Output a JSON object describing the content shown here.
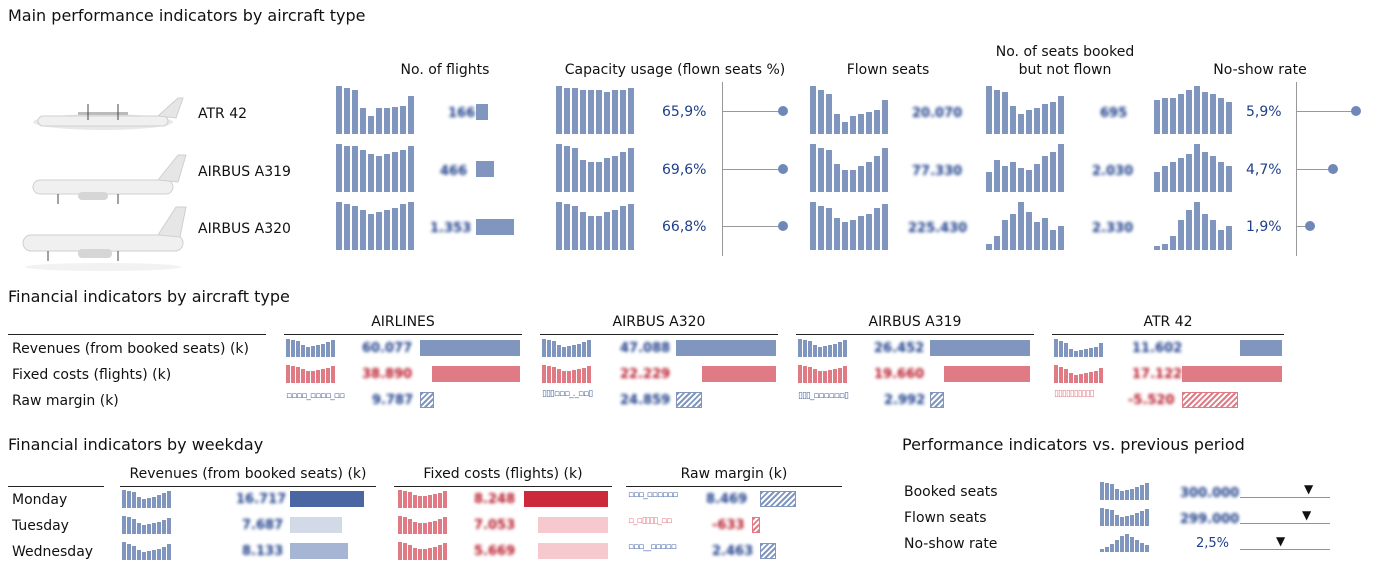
{
  "sections": {
    "main_title": "Main performance indicators by aircraft type",
    "financial_type_title": "Financial indicators by aircraft type",
    "financial_weekday_title": "Financial indicators by weekday",
    "perf_prev_title": "Performance indicators vs. previous period"
  },
  "main": {
    "col_flights": "No. of flights",
    "col_capacity": "Capacity usage (flown seats %)",
    "col_flown": "Flown seats",
    "col_booked_line1": "No. of seats booked",
    "col_booked_line2": "but not flown",
    "col_noshow": "No-show rate",
    "rows": [
      {
        "aircraft": "ATR 42",
        "capacity_value": "65,9%",
        "noshow_value": "5,9%"
      },
      {
        "aircraft": "AIRBUS A319",
        "capacity_value": "69,6%",
        "noshow_value": "4,7%"
      },
      {
        "aircraft": "AIRBUS A320",
        "capacity_value": "66,8%",
        "noshow_value": "1,9%"
      }
    ]
  },
  "fin_type": {
    "row_labels": [
      "Revenues (from booked seats) (k)",
      "Fixed costs (flights) (k)",
      "Raw margin (k)"
    ],
    "groups": [
      "AIRLINES",
      "AIRBUS A320",
      "AIRBUS A319",
      "ATR 42"
    ]
  },
  "fin_weekday": {
    "col_revenues": "Revenues (from booked seats) (k)",
    "col_fixed": "Fixed costs (flights) (k)",
    "col_margin": "Raw margin (k)",
    "days": [
      "Monday",
      "Tuesday",
      "Wednesday"
    ]
  },
  "perf_prev": {
    "rows": [
      "Booked seats",
      "Flown seats",
      "No-show rate"
    ],
    "noshow_value": "2,5%"
  },
  "colors": {
    "blue": "#8096bf",
    "red": "#e07a85",
    "dark_blue": "#4a67a3",
    "dark_red": "#cc2a3b"
  }
}
